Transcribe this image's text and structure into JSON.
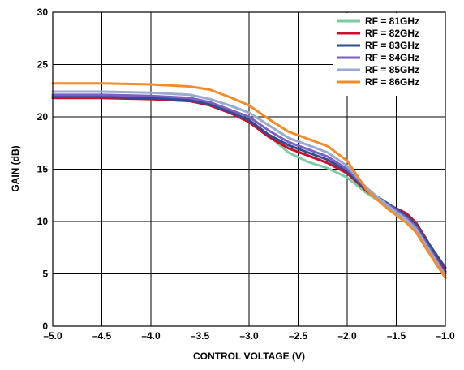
{
  "chart_data": {
    "type": "line",
    "title": "",
    "xlabel": "CONTROL VOLTAGE (V)",
    "ylabel": "GAIN (dB)",
    "xlim": [
      -5.0,
      -1.0
    ],
    "ylim": [
      0,
      30
    ],
    "xticks": [
      -5.0,
      -4.5,
      -4.0,
      -3.5,
      -3.0,
      -2.5,
      -2.0,
      -1.5,
      -1.0
    ],
    "xtick_labels": [
      "–5.0",
      "–4.5",
      "–4.0",
      "–3.5",
      "–3.0",
      "–2.5",
      "–2.0",
      "–1.5",
      "–1.0"
    ],
    "yticks": [
      0,
      5,
      10,
      15,
      20,
      25,
      30
    ],
    "ytick_labels": [
      "0",
      "5",
      "10",
      "15",
      "20",
      "25",
      "30"
    ],
    "grid": true,
    "legend_position": "top-right",
    "series": [
      {
        "name": "RF = 81GHz",
        "color": "#7fc9a3",
        "x": [
          -5.0,
          -4.5,
          -4.0,
          -3.6,
          -3.4,
          -3.2,
          -3.0,
          -2.8,
          -2.6,
          -2.4,
          -2.2,
          -2.0,
          -1.8,
          -1.6,
          -1.4,
          -1.3,
          -1.2,
          -1.0
        ],
        "y": [
          21.9,
          21.9,
          21.8,
          21.6,
          21.1,
          20.4,
          19.6,
          18.2,
          16.6,
          15.7,
          15.1,
          14.2,
          12.7,
          11.5,
          10.4,
          9.6,
          8.2,
          5.3
        ]
      },
      {
        "name": "RF = 82GHz",
        "color": "#c8102e",
        "x": [
          -5.0,
          -4.5,
          -4.0,
          -3.6,
          -3.4,
          -3.2,
          -3.0,
          -2.8,
          -2.6,
          -2.4,
          -2.2,
          -2.0,
          -1.8,
          -1.6,
          -1.4,
          -1.3,
          -1.2,
          -1.0
        ],
        "y": [
          21.8,
          21.8,
          21.7,
          21.5,
          21.1,
          20.4,
          19.5,
          18.1,
          17.0,
          16.3,
          15.6,
          14.6,
          12.9,
          11.7,
          10.8,
          9.9,
          8.4,
          5.2
        ]
      },
      {
        "name": "RF = 83GHz",
        "color": "#2e4d8f",
        "x": [
          -5.0,
          -4.5,
          -4.0,
          -3.6,
          -3.4,
          -3.2,
          -3.0,
          -2.8,
          -2.6,
          -2.4,
          -2.2,
          -2.0,
          -1.8,
          -1.6,
          -1.4,
          -1.3,
          -1.2,
          -1.0
        ],
        "y": [
          21.9,
          21.9,
          21.8,
          21.6,
          21.2,
          20.5,
          19.7,
          18.3,
          17.3,
          16.6,
          15.9,
          14.8,
          13.0,
          11.8,
          10.6,
          9.7,
          8.3,
          5.6
        ]
      },
      {
        "name": "RF = 84GHz",
        "color": "#7b5fc4",
        "x": [
          -5.0,
          -4.5,
          -4.0,
          -3.6,
          -3.4,
          -3.2,
          -3.0,
          -2.8,
          -2.6,
          -2.4,
          -2.2,
          -2.0,
          -1.8,
          -1.6,
          -1.4,
          -1.3,
          -1.2,
          -1.0
        ],
        "y": [
          22.1,
          22.1,
          22.0,
          21.8,
          21.4,
          20.7,
          20.0,
          18.7,
          17.6,
          16.9,
          16.2,
          15.0,
          13.1,
          11.7,
          10.4,
          9.5,
          8.0,
          5.0
        ]
      },
      {
        "name": "RF = 85GHz",
        "color": "#99a9cf",
        "x": [
          -5.0,
          -4.5,
          -4.0,
          -3.6,
          -3.4,
          -3.2,
          -3.0,
          -2.8,
          -2.6,
          -2.4,
          -2.2,
          -2.0,
          -1.8,
          -1.6,
          -1.4,
          -1.3,
          -1.2,
          -1.0
        ],
        "y": [
          22.4,
          22.4,
          22.3,
          22.1,
          21.7,
          21.1,
          20.4,
          19.2,
          18.0,
          17.3,
          16.6,
          15.3,
          13.2,
          11.6,
          10.2,
          9.3,
          7.8,
          4.8
        ]
      },
      {
        "name": "RF = 86GHz",
        "color": "#f28c28",
        "x": [
          -5.0,
          -4.5,
          -4.0,
          -3.6,
          -3.4,
          -3.2,
          -3.0,
          -2.8,
          -2.6,
          -2.4,
          -2.2,
          -2.0,
          -1.8,
          -1.6,
          -1.4,
          -1.3,
          -1.2,
          -1.0
        ],
        "y": [
          23.2,
          23.2,
          23.1,
          22.9,
          22.6,
          21.9,
          21.1,
          19.8,
          18.6,
          17.9,
          17.2,
          15.8,
          13.0,
          11.3,
          9.9,
          9.0,
          7.5,
          4.6
        ]
      }
    ]
  }
}
